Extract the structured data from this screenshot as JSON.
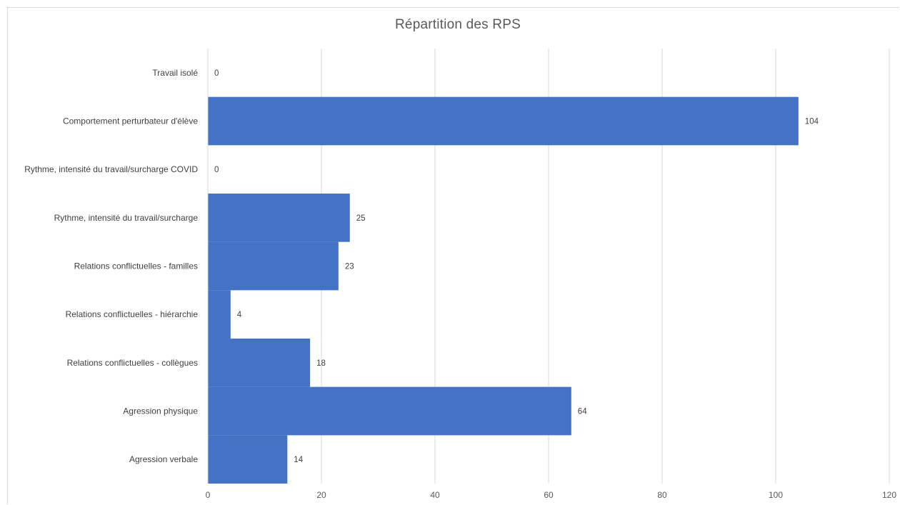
{
  "chart_data": {
    "type": "bar",
    "orientation": "horizontal",
    "title": "Répartition des RPS",
    "categories": [
      "Travail isolé",
      "Comportement perturbateur d'élève",
      "Rythme, intensité du travail/surcharge COVID",
      "Rythme, intensité du travail/surcharge",
      "Relations conflictuelles - familles",
      "Relations conflictuelles - hiérarchie",
      "Relations conflictuelles - collègues",
      "Agression physique",
      "Agression verbale"
    ],
    "values": [
      0,
      104,
      0,
      25,
      23,
      4,
      18,
      64,
      14
    ],
    "data_labels": [
      "0",
      "104",
      "0",
      "25",
      "23",
      "4",
      "18",
      "64",
      "14"
    ],
    "xlim": [
      0,
      120
    ],
    "x_ticks": [
      "0",
      "20",
      "40",
      "60",
      "80",
      "100",
      "120"
    ],
    "xlabel": "",
    "ylabel": "",
    "grid": "vertical",
    "legend": "none",
    "bar_color": "#4472c4",
    "gridline_color": "#d9d9d9"
  }
}
